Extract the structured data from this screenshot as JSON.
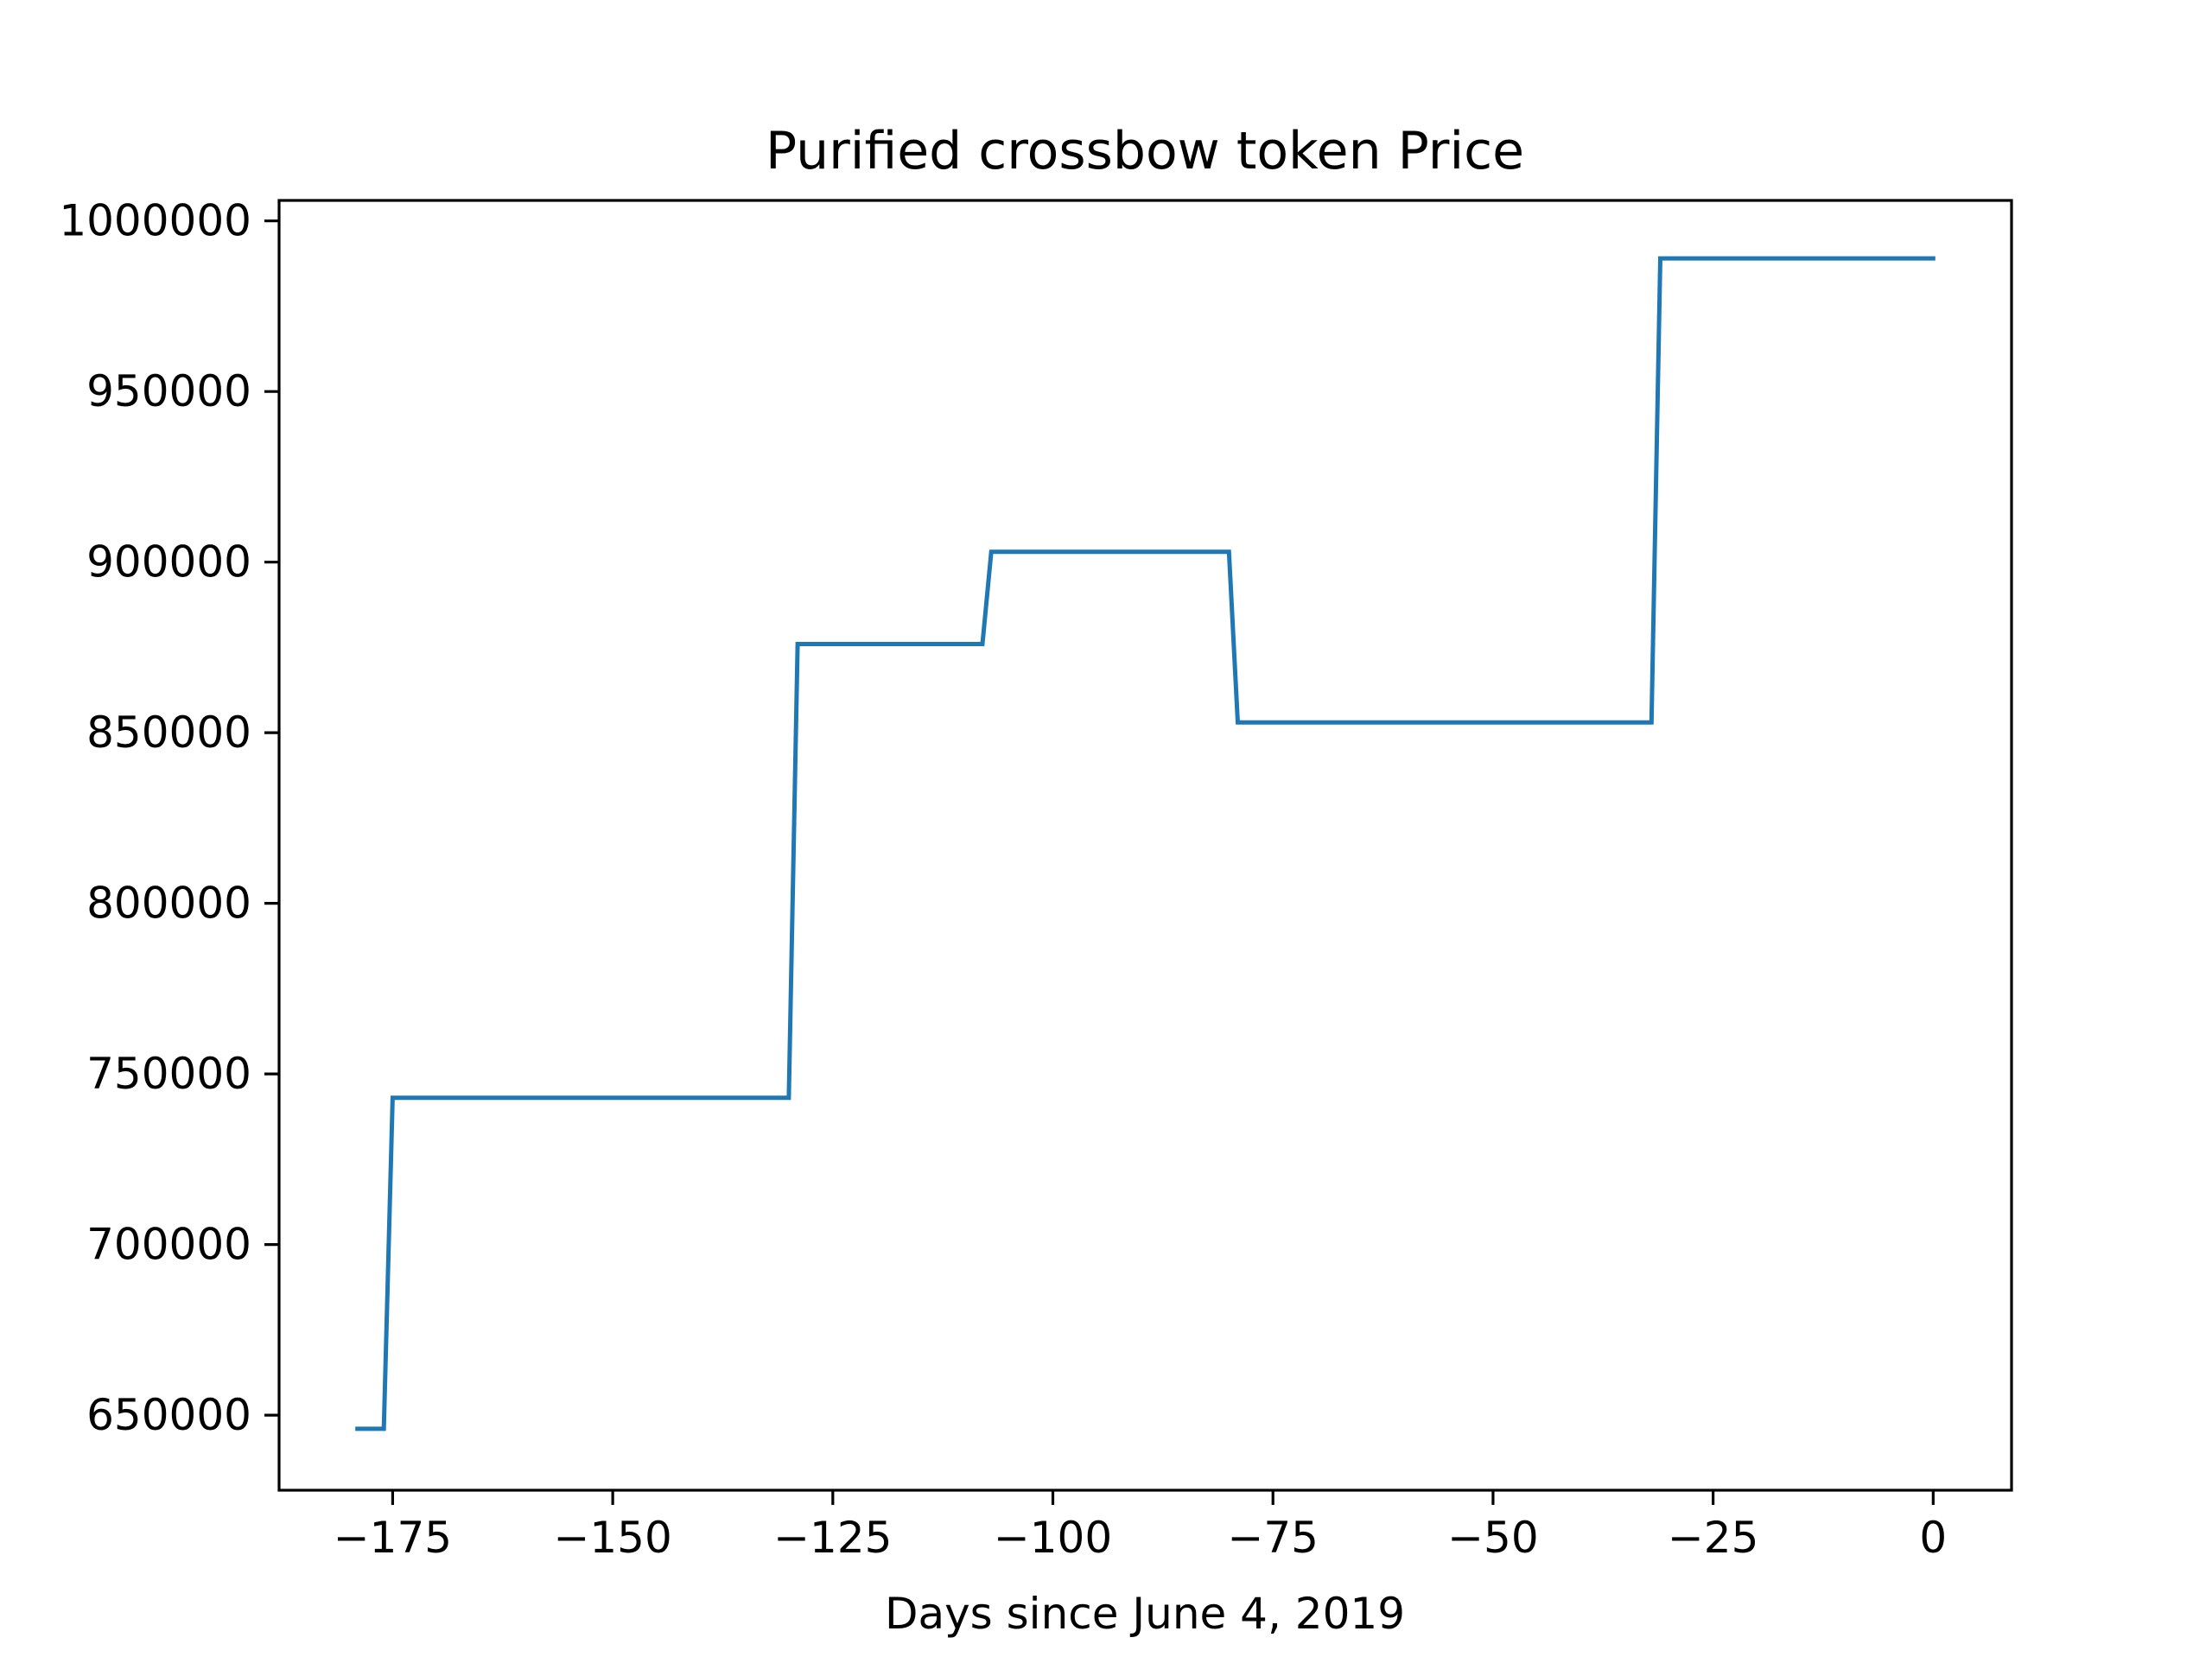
{
  "chart_data": {
    "type": "line",
    "title": "Purified crossbow token Price",
    "xlabel": "Days since June 4, 2019",
    "ylabel": "",
    "xlim": [
      -187.9,
      8.9
    ],
    "ylim": [
      628000,
      1006000
    ],
    "xticks": [
      -175,
      -150,
      -125,
      -100,
      -75,
      -50,
      -25,
      0
    ],
    "xtick_labels": [
      "−175",
      "−150",
      "−125",
      "−100",
      "−75",
      "−50",
      "−25",
      "0"
    ],
    "yticks": [
      650000,
      700000,
      750000,
      800000,
      850000,
      900000,
      950000,
      1000000
    ],
    "ytick_labels": [
      "650000",
      "700000",
      "750000",
      "800000",
      "850000",
      "900000",
      "950000",
      "1000000"
    ],
    "grid": false,
    "colors": {
      "line": "#1f77b4",
      "axes": "#000000",
      "background": "#ffffff"
    },
    "series": [
      {
        "x": [
          -179,
          -176,
          -175,
          -130,
          -129,
          -108,
          -107,
          -80,
          -79,
          -32,
          -31,
          0
        ],
        "y": [
          646000,
          646000,
          743000,
          743000,
          876000,
          876000,
          903000,
          903000,
          853000,
          853000,
          989000,
          989000
        ]
      }
    ]
  }
}
